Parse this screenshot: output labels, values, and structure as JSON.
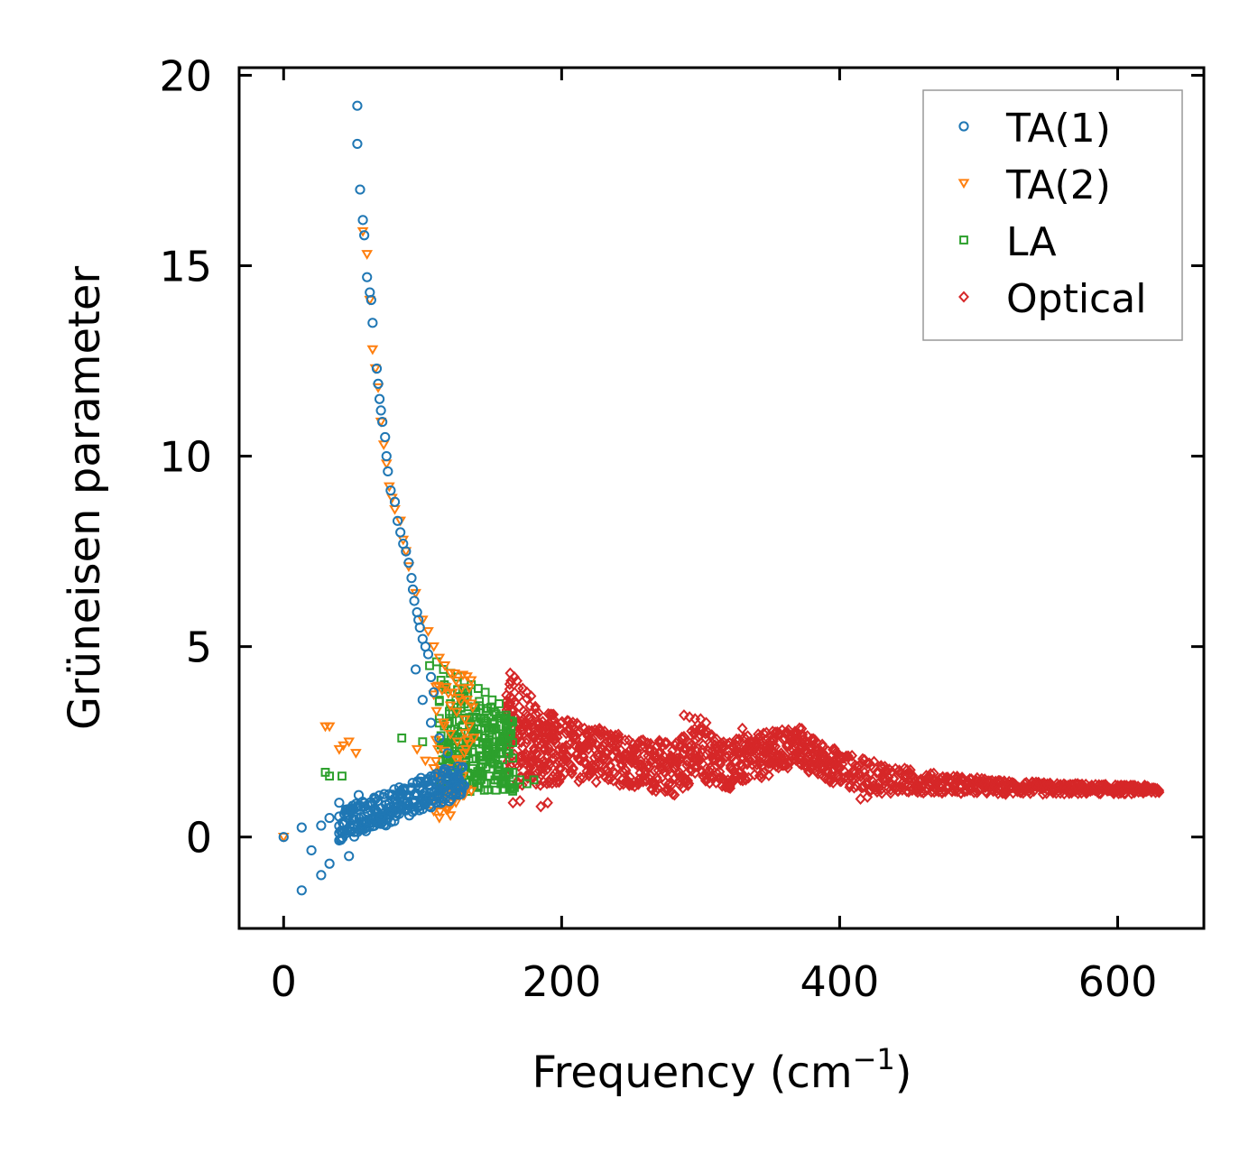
{
  "chart_data": {
    "type": "scatter",
    "title": "",
    "xlabel": "Frequency (cm",
    "xlabel_sup": "−1",
    "xlabel_close": ")",
    "ylabel": "Grüneisen parameter",
    "xlim": [
      -32,
      662
    ],
    "ylim": [
      -2.4,
      20.2
    ],
    "xticks": [
      0,
      200,
      400,
      600
    ],
    "yticks": [
      0,
      5,
      10,
      15,
      20
    ],
    "xtick_labels": [
      "0",
      "200",
      "400",
      "600"
    ],
    "ytick_labels": [
      "0",
      "5",
      "10",
      "15",
      "20"
    ],
    "legend_position": "top-right",
    "series": [
      {
        "name": "TA(1)",
        "marker": "circle",
        "color": "#1f77b4",
        "x": [
          0,
          13,
          13,
          20,
          27,
          27,
          33,
          33,
          40,
          40,
          47,
          47,
          53,
          53,
          54,
          55,
          57,
          58,
          60,
          62,
          63,
          64,
          67,
          68,
          69,
          70,
          71,
          73,
          74,
          75,
          77,
          80,
          82,
          84,
          86,
          88,
          90,
          92,
          93,
          94,
          96,
          97,
          98,
          100,
          102,
          104,
          106,
          108,
          60,
          65,
          70,
          75,
          80,
          85,
          90,
          95,
          100,
          105,
          110,
          115,
          120,
          125,
          130,
          58,
          62,
          66,
          72,
          78,
          84,
          92,
          98,
          104,
          112,
          118,
          124,
          46,
          50,
          56,
          64,
          70,
          76,
          82,
          88,
          96,
          102,
          110,
          116,
          122,
          128,
          95,
          100,
          106,
          112,
          118
        ],
        "y": [
          0,
          -1.4,
          0.25,
          -0.35,
          -1.0,
          0.3,
          -0.7,
          0.5,
          0.1,
          0.9,
          -0.5,
          0.7,
          19.2,
          18.2,
          1.1,
          17.0,
          16.2,
          15.8,
          14.7,
          14.3,
          14.1,
          13.5,
          12.3,
          11.9,
          11.5,
          11.2,
          10.9,
          10.5,
          10.0,
          9.6,
          9.1,
          8.8,
          8.3,
          8.0,
          7.7,
          7.5,
          7.2,
          6.8,
          6.5,
          6.2,
          5.9,
          5.7,
          5.5,
          5.2,
          5.0,
          4.8,
          4.2,
          3.8,
          0.4,
          0.5,
          0.55,
          0.6,
          0.7,
          0.75,
          0.85,
          0.95,
          1.0,
          1.05,
          1.1,
          1.2,
          1.25,
          1.3,
          1.35,
          0.8,
          0.9,
          1.0,
          1.05,
          1.1,
          1.2,
          1.25,
          1.3,
          1.35,
          1.4,
          1.5,
          1.55,
          0.2,
          0.3,
          0.35,
          0.45,
          0.5,
          0.6,
          0.65,
          0.7,
          0.8,
          0.85,
          0.9,
          1.0,
          1.1,
          1.2,
          4.4,
          3.6,
          3.0,
          2.6,
          2.2
        ]
      },
      {
        "name": "TA(2)",
        "marker": "triangle-down",
        "color": "#ff7f0e",
        "x": [
          0,
          30,
          33,
          40,
          43,
          47,
          52,
          57,
          60,
          62,
          64,
          66,
          68,
          70,
          72,
          74,
          76,
          78,
          80,
          84,
          86,
          88,
          90,
          95,
          100,
          104,
          108,
          112,
          116,
          120,
          124,
          128,
          132,
          136,
          110,
          115,
          120,
          125,
          130,
          112,
          118,
          124,
          130,
          113,
          119,
          125,
          131,
          137,
          96,
          102,
          108,
          114,
          120,
          126
        ],
        "y": [
          0,
          2.9,
          2.9,
          2.3,
          2.4,
          2.5,
          2.2,
          15.9,
          15.3,
          14.1,
          12.8,
          12.3,
          11.8,
          10.9,
          10.3,
          9.8,
          9.2,
          8.9,
          8.6,
          8.3,
          7.8,
          7.5,
          7.1,
          6.4,
          5.7,
          5.4,
          5.0,
          4.7,
          4.5,
          4.3,
          4.1,
          3.9,
          3.6,
          3.4,
          3.3,
          3.0,
          2.7,
          2.5,
          2.2,
          0.5,
          0.7,
          0.9,
          1.1,
          1.6,
          1.8,
          2.0,
          2.3,
          2.6,
          2.3,
          2.0,
          1.8,
          1.5,
          1.3,
          1.1
        ]
      },
      {
        "name": "LA",
        "marker": "square",
        "color": "#2ca02c",
        "x": [
          30,
          33,
          42,
          85,
          100,
          105,
          110,
          115,
          120,
          125,
          130,
          135,
          140,
          145,
          150,
          155,
          160,
          165,
          170,
          175,
          180,
          120,
          125,
          130,
          135,
          140,
          145,
          150,
          155,
          160,
          118,
          124,
          130,
          136,
          142,
          148,
          154,
          160,
          166,
          132,
          138,
          144,
          150,
          156,
          162,
          134,
          140,
          146,
          152,
          158
        ],
        "y": [
          1.7,
          1.6,
          1.6,
          2.6,
          2.5,
          4.5,
          4.6,
          4.4,
          4.3,
          4.2,
          4.1,
          4.0,
          3.9,
          3.8,
          3.6,
          3.5,
          3.2,
          1.7,
          1.5,
          1.4,
          1.5,
          3.5,
          3.3,
          3.1,
          2.9,
          2.7,
          2.6,
          2.5,
          2.4,
          2.3,
          2.1,
          2.0,
          1.9,
          1.8,
          1.7,
          1.6,
          1.5,
          1.4,
          1.3,
          3.7,
          3.4,
          3.1,
          2.8,
          2.5,
          2.2,
          1.2,
          1.3,
          1.4,
          1.5,
          1.6
        ]
      },
      {
        "name": "Optical",
        "marker": "diamond",
        "color": "#d62728",
        "band_centers": [
          [
            160,
            2.9
          ],
          [
            170,
            2.6
          ],
          [
            180,
            2.4
          ],
          [
            190,
            2.3
          ],
          [
            200,
            2.3
          ],
          [
            210,
            2.25
          ],
          [
            220,
            2.2
          ],
          [
            230,
            2.1
          ],
          [
            240,
            2.05
          ],
          [
            250,
            2.0
          ],
          [
            260,
            1.9
          ],
          [
            270,
            1.85
          ],
          [
            280,
            1.8
          ],
          [
            290,
            2.1
          ],
          [
            300,
            2.2
          ],
          [
            310,
            2.0
          ],
          [
            320,
            1.9
          ],
          [
            330,
            2.0
          ],
          [
            340,
            2.1
          ],
          [
            350,
            2.2
          ],
          [
            360,
            2.3
          ],
          [
            370,
            2.4
          ],
          [
            380,
            2.1
          ],
          [
            390,
            1.95
          ],
          [
            400,
            1.8
          ],
          [
            410,
            1.7
          ],
          [
            420,
            1.6
          ],
          [
            430,
            1.55
          ],
          [
            440,
            1.5
          ],
          [
            450,
            1.45
          ],
          [
            460,
            1.45
          ],
          [
            470,
            1.4
          ],
          [
            480,
            1.4
          ],
          [
            490,
            1.35
          ],
          [
            500,
            1.35
          ],
          [
            510,
            1.3
          ],
          [
            520,
            1.3
          ],
          [
            530,
            1.3
          ],
          [
            540,
            1.28
          ],
          [
            550,
            1.27
          ],
          [
            560,
            1.27
          ],
          [
            570,
            1.27
          ],
          [
            580,
            1.26
          ],
          [
            590,
            1.26
          ],
          [
            600,
            1.25
          ],
          [
            610,
            1.25
          ],
          [
            620,
            1.25
          ],
          [
            630,
            1.24
          ]
        ],
        "band_widths": [
          [
            160,
            2.8
          ],
          [
            180,
            2.2
          ],
          [
            200,
            1.7
          ],
          [
            230,
            1.4
          ],
          [
            260,
            1.3
          ],
          [
            290,
            1.5
          ],
          [
            320,
            1.3
          ],
          [
            360,
            1.1
          ],
          [
            400,
            0.9
          ],
          [
            430,
            0.8
          ],
          [
            470,
            0.5
          ],
          [
            520,
            0.35
          ],
          [
            580,
            0.25
          ],
          [
            630,
            0.2
          ]
        ],
        "extra_points": [
          [
            163,
            4.3
          ],
          [
            166,
            4.2
          ],
          [
            168,
            4.1
          ],
          [
            172,
            3.9
          ],
          [
            175,
            3.8
          ],
          [
            178,
            3.7
          ],
          [
            165,
            0.9
          ],
          [
            170,
            0.95
          ],
          [
            185,
            0.8
          ],
          [
            190,
            0.9
          ],
          [
            288,
            3.2
          ],
          [
            292,
            3.15
          ],
          [
            296,
            3.1
          ],
          [
            300,
            3.1
          ],
          [
            304,
            3.0
          ],
          [
            330,
            2.85
          ],
          [
            415,
            1.0
          ],
          [
            420,
            1.05
          ],
          [
            470,
            1.4
          ]
        ]
      }
    ]
  }
}
